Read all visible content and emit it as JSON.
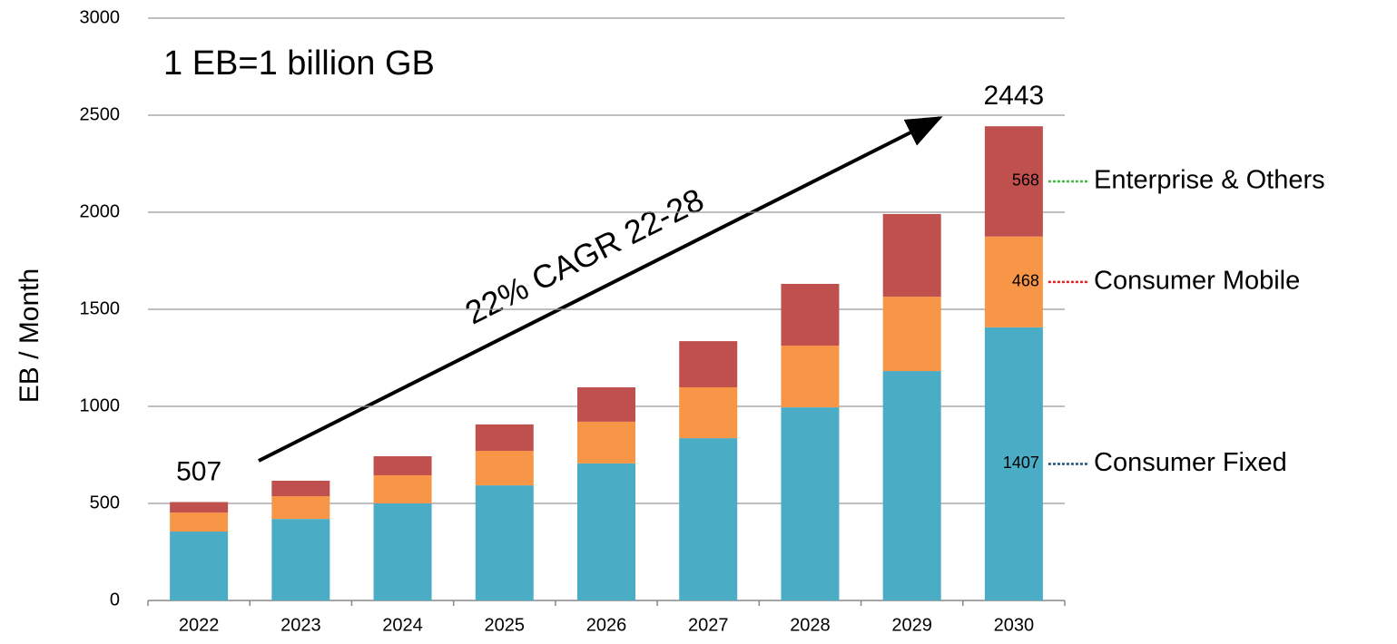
{
  "chart_data": {
    "type": "stacked-bar",
    "subtitle": "1 EB=1 billion GB",
    "y_label": "EB / Month",
    "annotation": "22% CAGR 22-28",
    "categories": [
      "2022",
      "2023",
      "2024",
      "2025",
      "2026",
      "2027",
      "2028",
      "2029",
      "2030"
    ],
    "series": [
      {
        "name": "Consumer Fixed",
        "color": "#4bacc6",
        "leader_color": "#1f4e79",
        "values": [
          355,
          420,
          500,
          593,
          706,
          836,
          995,
          1182,
          1407
        ]
      },
      {
        "name": "Consumer Mobile",
        "color": "#f79646",
        "leader_color": "#e02020",
        "values": [
          98,
          117,
          145,
          178,
          215,
          262,
          318,
          383,
          468
        ]
      },
      {
        "name": "Enterprise & Others",
        "color": "#c0504d",
        "leader_color": "#40b840",
        "values": [
          54,
          80,
          98,
          136,
          177,
          238,
          318,
          426,
          568
        ]
      }
    ],
    "total_labels": [
      {
        "category": "2022",
        "value": 507
      },
      {
        "category": "2030",
        "value": 2443
      }
    ],
    "label_last_bar": true,
    "ylim": [
      0,
      3000
    ],
    "yticks": [
      0,
      500,
      1000,
      1500,
      2000,
      2500,
      3000
    ],
    "grid": true
  }
}
